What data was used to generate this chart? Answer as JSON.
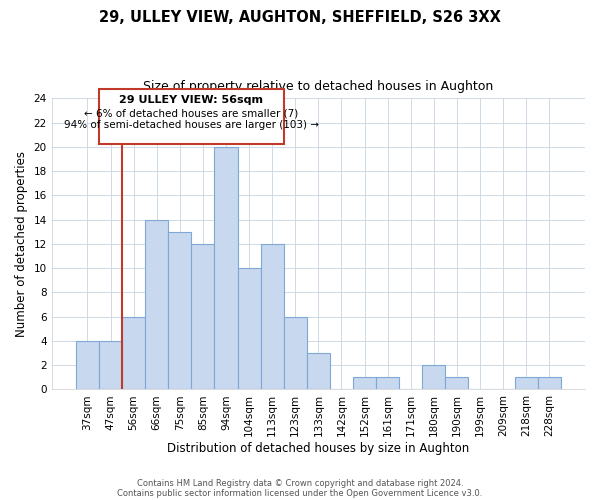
{
  "title": "29, ULLEY VIEW, AUGHTON, SHEFFIELD, S26 3XX",
  "subtitle": "Size of property relative to detached houses in Aughton",
  "xlabel": "Distribution of detached houses by size in Aughton",
  "ylabel": "Number of detached properties",
  "bar_color": "#c8d8ee",
  "bar_edge_color": "#7fa8d4",
  "highlight_color": "#c0392b",
  "categories": [
    "37sqm",
    "47sqm",
    "56sqm",
    "66sqm",
    "75sqm",
    "85sqm",
    "94sqm",
    "104sqm",
    "113sqm",
    "123sqm",
    "133sqm",
    "142sqm",
    "152sqm",
    "161sqm",
    "171sqm",
    "180sqm",
    "190sqm",
    "199sqm",
    "209sqm",
    "218sqm",
    "228sqm"
  ],
  "values": [
    4,
    4,
    6,
    14,
    13,
    12,
    20,
    10,
    12,
    6,
    3,
    0,
    1,
    1,
    0,
    2,
    1,
    0,
    0,
    1,
    1
  ],
  "highlight_index": 2,
  "annotation_title": "29 ULLEY VIEW: 56sqm",
  "annotation_line1": "← 6% of detached houses are smaller (7)",
  "annotation_line2": "94% of semi-detached houses are larger (103) →",
  "ylim": [
    0,
    24
  ],
  "yticks": [
    0,
    2,
    4,
    6,
    8,
    10,
    12,
    14,
    16,
    18,
    20,
    22,
    24
  ],
  "footer1": "Contains HM Land Registry data © Crown copyright and database right 2024.",
  "footer2": "Contains public sector information licensed under the Open Government Licence v3.0."
}
